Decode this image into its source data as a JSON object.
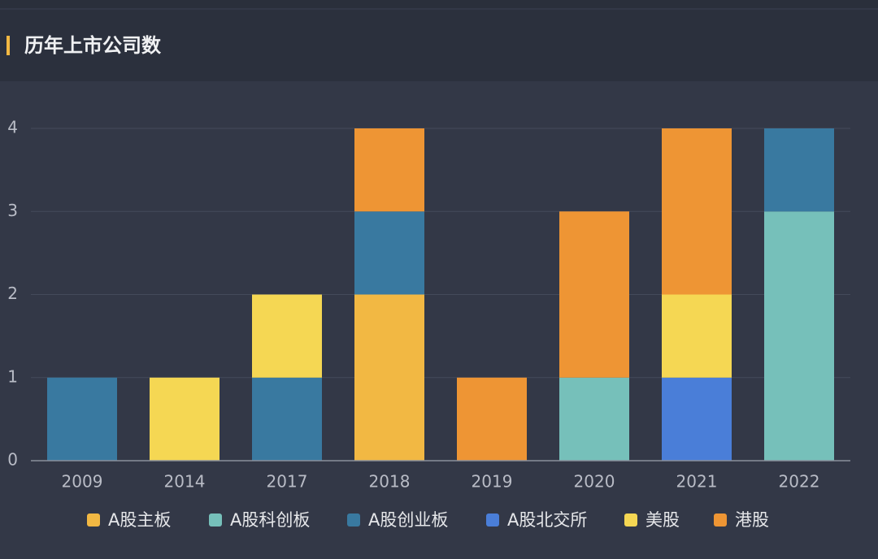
{
  "chart_data": {
    "type": "stacked_bar",
    "title": "历年上市公司数",
    "categories": [
      "2009",
      "2014",
      "2017",
      "2018",
      "2019",
      "2020",
      "2021",
      "2022"
    ],
    "series": [
      {
        "name": "A股主板",
        "color": "#f2b843",
        "values": [
          0,
          0,
          0,
          2,
          0,
          0,
          0,
          0
        ]
      },
      {
        "name": "A股科创板",
        "color": "#76c0ba",
        "values": [
          0,
          0,
          0,
          0,
          0,
          1,
          0,
          3
        ]
      },
      {
        "name": "A股创业板",
        "color": "#3979a0",
        "values": [
          1,
          0,
          1,
          1,
          0,
          0,
          0,
          1
        ]
      },
      {
        "name": "A股北交所",
        "color": "#4a7ed8",
        "values": [
          0,
          0,
          0,
          0,
          0,
          0,
          1,
          0
        ]
      },
      {
        "name": "美股",
        "color": "#f5d753",
        "values": [
          0,
          1,
          1,
          0,
          0,
          0,
          1,
          0
        ]
      },
      {
        "name": "港股",
        "color": "#ee9534",
        "values": [
          0,
          0,
          0,
          1,
          1,
          2,
          2,
          0
        ]
      }
    ],
    "ylim": [
      0,
      4
    ],
    "yticks": [
      0,
      1,
      2,
      3,
      4
    ],
    "grid": true
  }
}
